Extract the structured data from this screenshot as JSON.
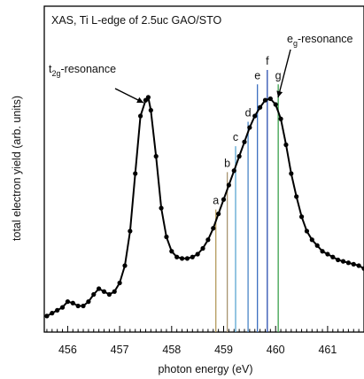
{
  "chart_data": {
    "type": "line",
    "title": "XAS, Ti L-edge of 2.5uc GAO/STO",
    "xlabel": "photon energy (eV)",
    "ylabel": "total electron yield (arb. units)",
    "xlim": [
      455.55,
      461.7
    ],
    "ylim": [
      0,
      1
    ],
    "x_ticks": [
      456,
      457,
      458,
      459,
      460,
      461
    ],
    "y_ticks": [],
    "grid": false,
    "legend": "none",
    "marker": "circle",
    "line_color": "#000000",
    "annotations": [
      {
        "base": "t",
        "sub": "2g",
        "rest": "-resonance",
        "target_x": 457.55,
        "target_y": 0.785
      },
      {
        "base": "e",
        "sub": "g",
        "rest": "-resonance",
        "target_x": 459.97,
        "target_y": 0.78
      }
    ],
    "vertical_lines": [
      {
        "label": "a",
        "x": 458.85,
        "y_top": 0.395,
        "color": "#b49a5c"
      },
      {
        "label": "b",
        "x": 459.07,
        "y_top": 0.525,
        "color": "#a89470"
      },
      {
        "label": "c",
        "x": 459.23,
        "y_top": 0.615,
        "color": "#5aa6d2"
      },
      {
        "label": "d",
        "x": 459.47,
        "y_top": 0.7,
        "color": "#4a86c6"
      },
      {
        "label": "e",
        "x": 459.65,
        "y_top": 0.83,
        "color": "#3c6fc0"
      },
      {
        "label": "f",
        "x": 459.84,
        "y_top": 0.88,
        "color": "#2a4fb0"
      },
      {
        "label": "g",
        "x": 460.05,
        "y_top": 0.83,
        "color": "#3aa04c"
      }
    ],
    "series": [
      {
        "x": [
          455.6,
          455.7,
          455.8,
          455.9,
          456.0,
          456.1,
          456.2,
          456.3,
          456.4,
          456.5,
          456.6,
          456.7,
          456.8,
          456.9,
          457.0,
          457.1,
          457.2,
          457.3,
          457.4,
          457.5,
          457.55,
          457.6,
          457.7,
          457.8,
          457.9,
          458.0,
          458.1,
          458.2,
          458.3,
          458.4,
          458.5,
          458.6,
          458.7,
          458.8,
          458.9,
          459.0,
          459.1,
          459.2,
          459.3,
          459.4,
          459.5,
          459.6,
          459.7,
          459.8,
          459.9,
          460.0,
          460.1,
          460.2,
          460.3,
          460.4,
          460.5,
          460.6,
          460.7,
          460.8,
          460.9,
          461.0,
          461.1,
          461.2,
          461.3,
          461.4,
          461.5,
          461.6,
          461.7
        ],
        "y": [
          0.025,
          0.035,
          0.045,
          0.055,
          0.075,
          0.07,
          0.06,
          0.06,
          0.075,
          0.1,
          0.12,
          0.11,
          0.1,
          0.11,
          0.14,
          0.2,
          0.32,
          0.52,
          0.72,
          0.775,
          0.785,
          0.74,
          0.58,
          0.4,
          0.3,
          0.25,
          0.23,
          0.225,
          0.225,
          0.23,
          0.24,
          0.26,
          0.29,
          0.33,
          0.38,
          0.43,
          0.48,
          0.53,
          0.58,
          0.63,
          0.68,
          0.72,
          0.75,
          0.775,
          0.78,
          0.76,
          0.71,
          0.62,
          0.52,
          0.44,
          0.37,
          0.32,
          0.29,
          0.27,
          0.25,
          0.24,
          0.23,
          0.22,
          0.215,
          0.21,
          0.205,
          0.2,
          0.19
        ]
      }
    ]
  }
}
